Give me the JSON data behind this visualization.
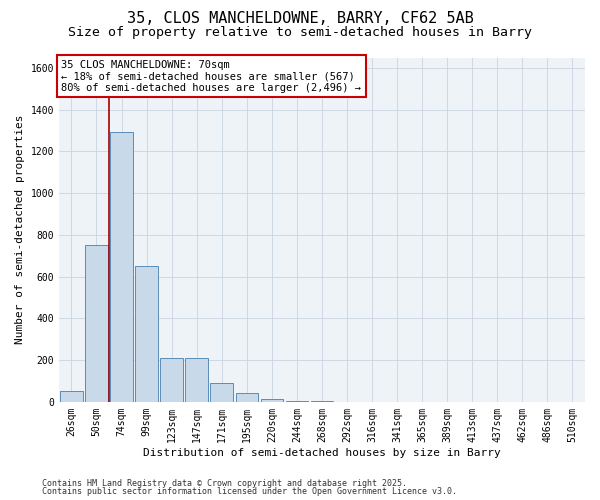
{
  "title_line1": "35, CLOS MANCHELDOWNE, BARRY, CF62 5AB",
  "title_line2": "Size of property relative to semi-detached houses in Barry",
  "xlabel": "Distribution of semi-detached houses by size in Barry",
  "ylabel": "Number of semi-detached properties",
  "categories": [
    "26sqm",
    "50sqm",
    "74sqm",
    "99sqm",
    "123sqm",
    "147sqm",
    "171sqm",
    "195sqm",
    "220sqm",
    "244sqm",
    "268sqm",
    "292sqm",
    "316sqm",
    "341sqm",
    "365sqm",
    "389sqm",
    "413sqm",
    "437sqm",
    "462sqm",
    "486sqm",
    "510sqm"
  ],
  "values": [
    52,
    750,
    1295,
    650,
    210,
    210,
    88,
    40,
    15,
    5,
    2,
    0,
    0,
    0,
    0,
    0,
    0,
    0,
    0,
    0,
    0
  ],
  "bar_color": "#c8d9ea",
  "bar_edge_color": "#5b8db8",
  "vline_color": "#aa0000",
  "vline_x": 1.5,
  "annotation_text": "35 CLOS MANCHELDOWNE: 70sqm\n← 18% of semi-detached houses are smaller (567)\n80% of semi-detached houses are larger (2,496) →",
  "annotation_box_edgecolor": "#cc0000",
  "ylim": [
    0,
    1650
  ],
  "yticks": [
    0,
    200,
    400,
    600,
    800,
    1000,
    1200,
    1400,
    1600
  ],
  "bg_color": "#ffffff",
  "plot_bg_color": "#eef3f8",
  "grid_color": "#c8d4e0",
  "footer_line1": "Contains HM Land Registry data © Crown copyright and database right 2025.",
  "footer_line2": "Contains public sector information licensed under the Open Government Licence v3.0.",
  "title_fontsize": 11,
  "subtitle_fontsize": 9.5,
  "axis_label_fontsize": 8,
  "tick_fontsize": 7,
  "annot_fontsize": 7.5,
  "footer_fontsize": 6
}
